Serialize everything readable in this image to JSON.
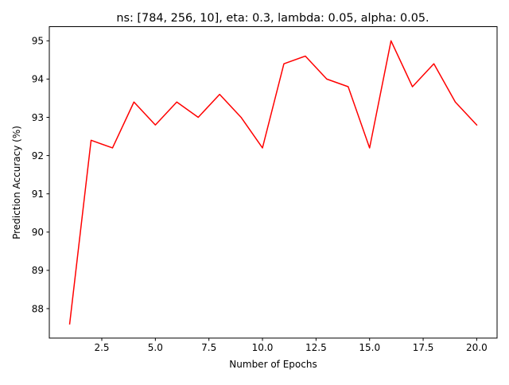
{
  "chart_data": {
    "type": "line",
    "title": "ns: [784, 256, 10], eta: 0.3, lambda: 0.05, alpha: 0.05.",
    "xlabel": "Number of Epochs",
    "ylabel": "Prediction Accuracy (%)",
    "xlim": [
      0.05,
      20.95
    ],
    "ylim": [
      87.23,
      95.37
    ],
    "xticks": [
      2.5,
      5.0,
      7.5,
      10.0,
      12.5,
      15.0,
      17.5,
      20.0
    ],
    "xtick_labels": [
      "2.5",
      "5.0",
      "7.5",
      "10.0",
      "12.5",
      "15.0",
      "17.5",
      "20.0"
    ],
    "yticks": [
      88,
      89,
      90,
      91,
      92,
      93,
      94,
      95
    ],
    "ytick_labels": [
      "88",
      "89",
      "90",
      "91",
      "92",
      "93",
      "94",
      "95"
    ],
    "grid": false,
    "legend": "none",
    "series": [
      {
        "color": "#ff0000",
        "x": [
          1,
          2,
          3,
          4,
          5,
          6,
          7,
          8,
          9,
          10,
          11,
          12,
          13,
          14,
          15,
          16,
          17,
          18,
          19,
          20
        ],
        "y": [
          87.6,
          92.4,
          92.2,
          93.4,
          92.8,
          93.4,
          93.0,
          93.6,
          93.0,
          92.2,
          94.4,
          94.6,
          94.0,
          93.8,
          92.2,
          95.0,
          93.8,
          94.4,
          93.4,
          92.8
        ]
      }
    ]
  }
}
